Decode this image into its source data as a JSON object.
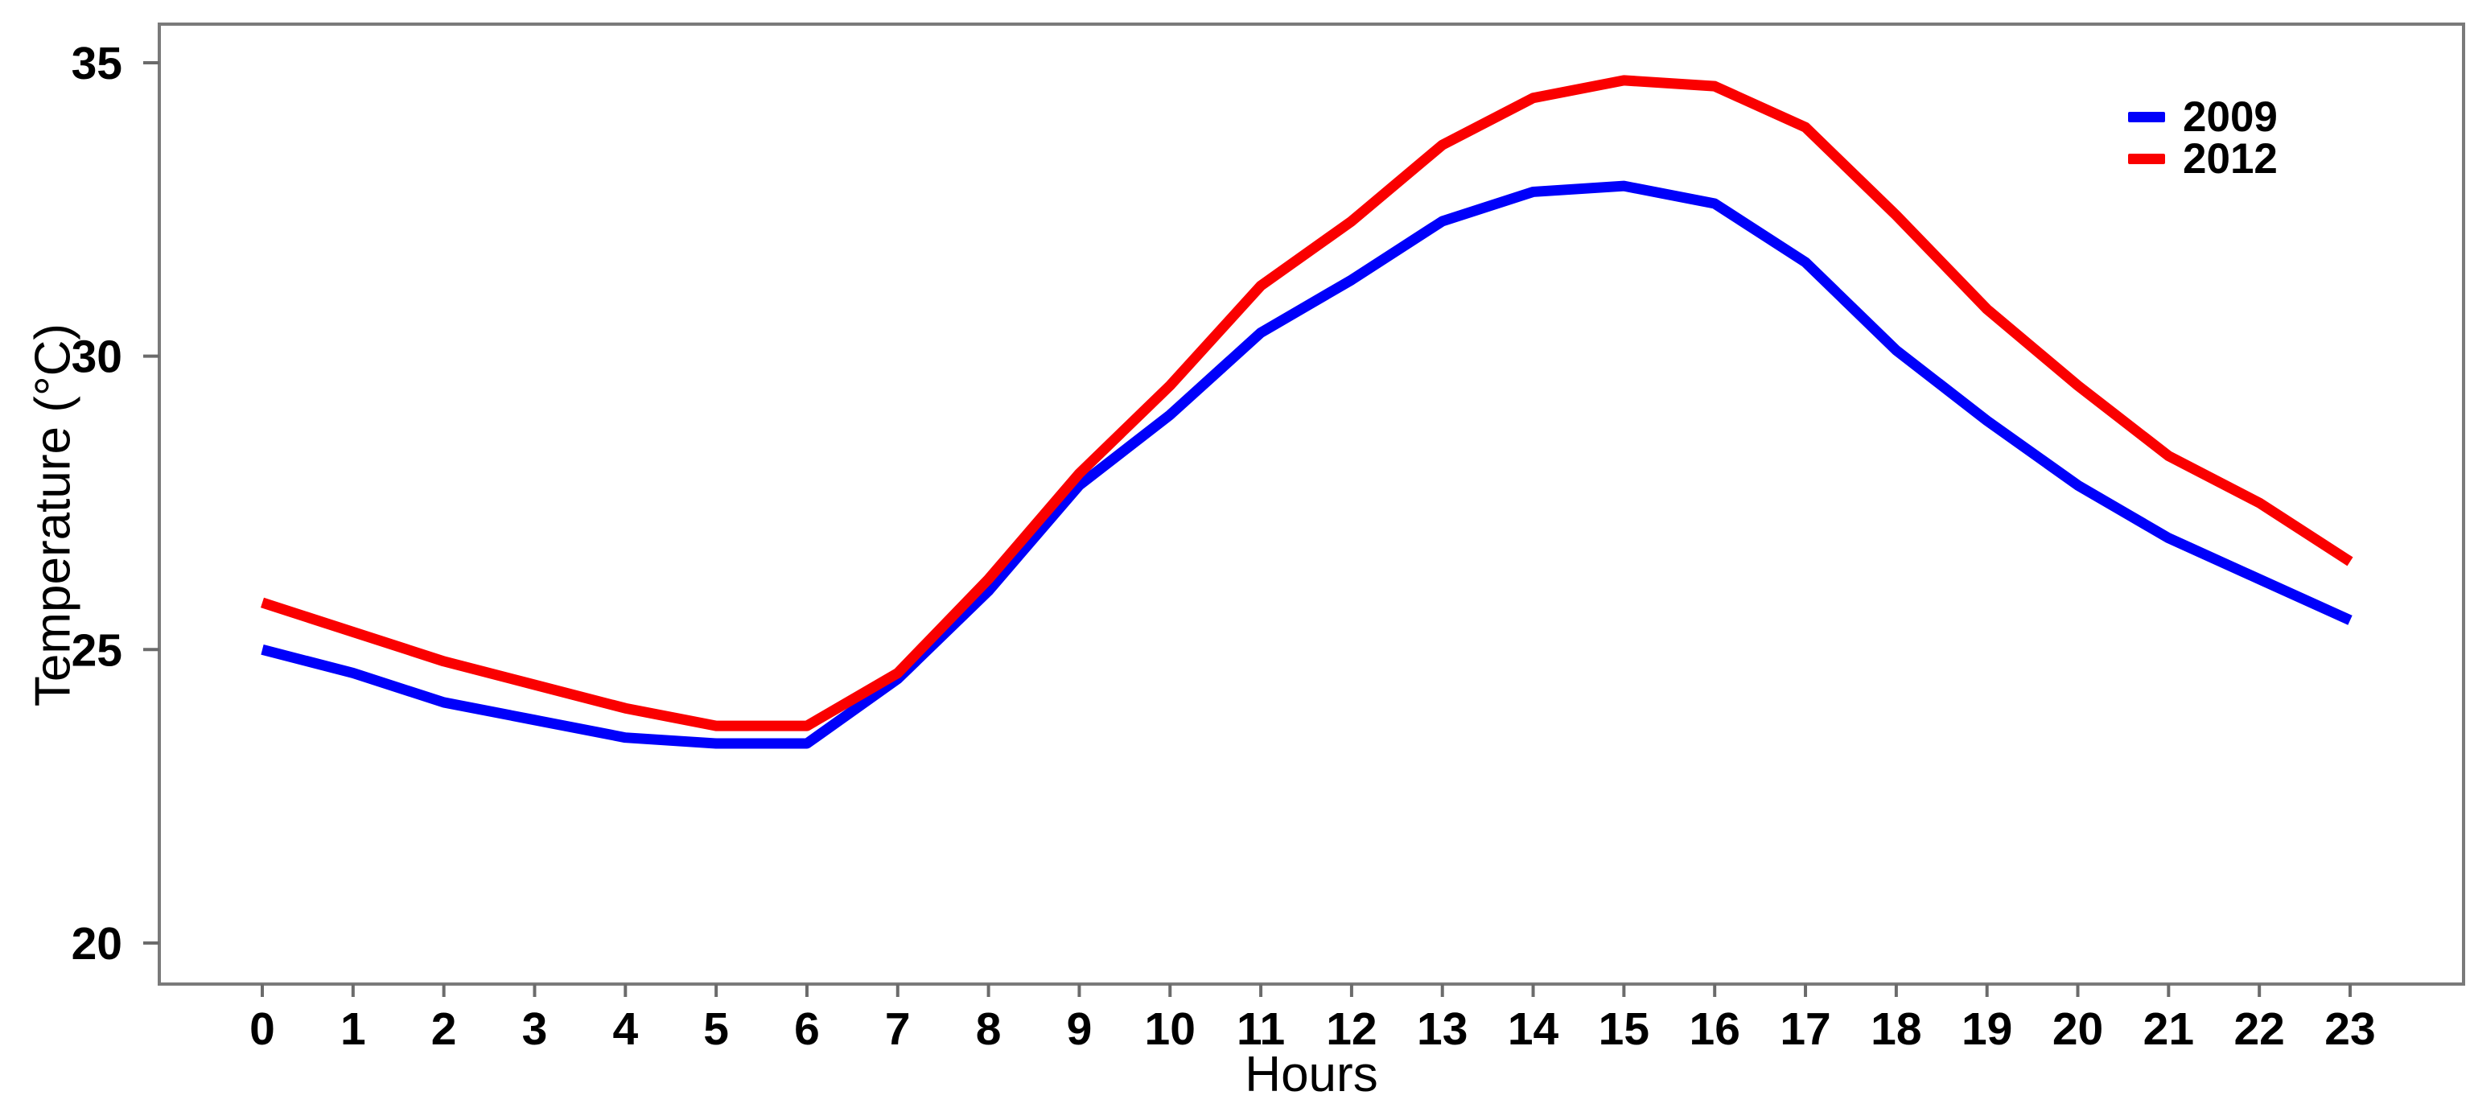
{
  "chart_data": {
    "type": "line",
    "title": "",
    "xlabel": "Hours",
    "ylabel": "Temperature (°C)",
    "x": [
      0,
      1,
      2,
      3,
      4,
      5,
      6,
      7,
      8,
      9,
      10,
      11,
      12,
      13,
      14,
      15,
      16,
      17,
      18,
      19,
      20,
      21,
      22,
      23
    ],
    "xticks": [
      0,
      1,
      2,
      3,
      4,
      5,
      6,
      7,
      8,
      9,
      10,
      11,
      12,
      13,
      14,
      15,
      16,
      17,
      18,
      19,
      20,
      21,
      22,
      23
    ],
    "yticks": [
      20,
      25,
      30,
      35
    ],
    "ylim": [
      19.3,
      35.7
    ],
    "xlim": [
      -1.15,
      1.25
    ],
    "grid": false,
    "legend_position": "top-right",
    "frame_color": "#7a7a7a",
    "tick_color": "#6b6b6b",
    "text_color": "#000000",
    "series": [
      {
        "name": "2009",
        "color": "#0000fa",
        "values": [
          25.0,
          24.6,
          24.1,
          23.8,
          23.5,
          23.4,
          23.4,
          24.5,
          26.0,
          27.8,
          29.0,
          30.4,
          31.3,
          32.3,
          32.8,
          32.9,
          32.6,
          31.6,
          30.1,
          28.9,
          27.8,
          26.9,
          26.2,
          25.5
        ]
      },
      {
        "name": "2012",
        "color": "#fa0000",
        "values": [
          25.8,
          25.3,
          24.8,
          24.4,
          24.0,
          23.7,
          23.7,
          24.6,
          26.2,
          28.0,
          29.5,
          31.2,
          32.3,
          33.6,
          34.4,
          34.7,
          34.6,
          33.9,
          32.4,
          30.8,
          29.5,
          28.3,
          27.5,
          26.5
        ]
      }
    ]
  }
}
